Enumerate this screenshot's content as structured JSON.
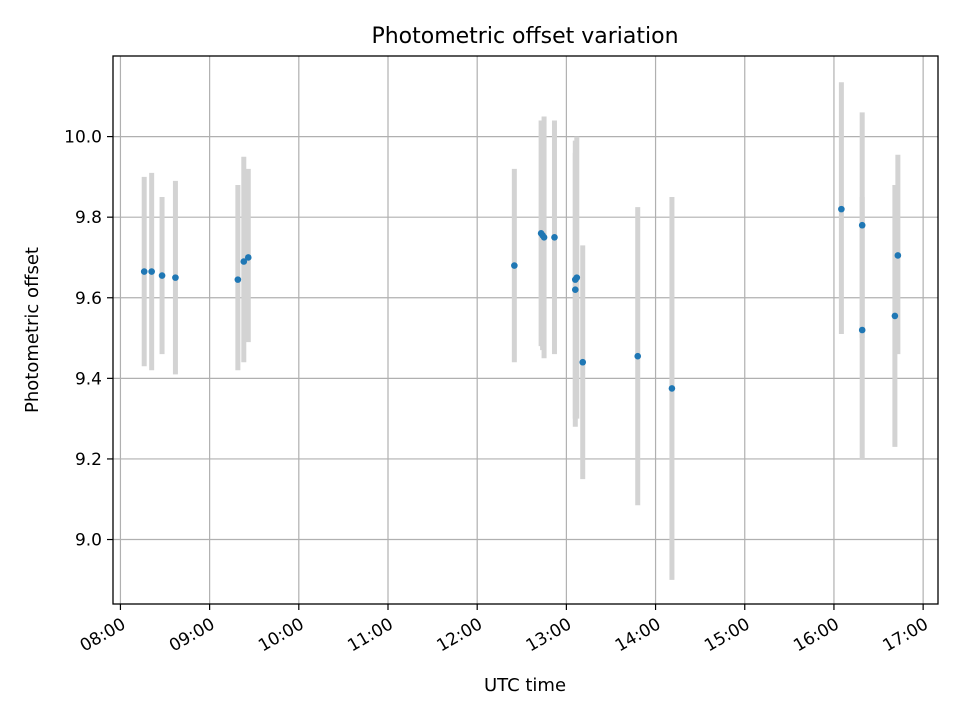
{
  "chart_data": {
    "type": "scatter",
    "title": "Photometric offset variation",
    "xlabel": "UTC time",
    "ylabel": "Photometric offset",
    "x_tick_labels": [
      "08:00",
      "09:00",
      "10:00",
      "11:00",
      "12:00",
      "13:00",
      "14:00",
      "15:00",
      "16:00",
      "17:00"
    ],
    "y_tick_labels": [
      "9.0",
      "9.2",
      "9.4",
      "9.6",
      "9.8",
      "10.0"
    ],
    "xlim": [
      "07:55",
      "17:10"
    ],
    "ylim": [
      8.84,
      10.2
    ],
    "grid": true,
    "legend": false,
    "colors": {
      "points": "#1f77b4",
      "errorbars": "#d3d3d3",
      "grid": "#b0b0b0"
    },
    "points": [
      {
        "x": "08:16",
        "y": 9.665,
        "ylow": 9.43,
        "yhigh": 9.9
      },
      {
        "x": "08:21",
        "y": 9.665,
        "ylow": 9.42,
        "yhigh": 9.91
      },
      {
        "x": "08:28",
        "y": 9.655,
        "ylow": 9.46,
        "yhigh": 9.85
      },
      {
        "x": "08:37",
        "y": 9.65,
        "ylow": 9.41,
        "yhigh": 9.89
      },
      {
        "x": "09:19",
        "y": 9.645,
        "ylow": 9.42,
        "yhigh": 9.88
      },
      {
        "x": "09:23",
        "y": 9.69,
        "ylow": 9.44,
        "yhigh": 9.95
      },
      {
        "x": "09:26",
        "y": 9.7,
        "ylow": 9.49,
        "yhigh": 9.92
      },
      {
        "x": "12:25",
        "y": 9.68,
        "ylow": 9.44,
        "yhigh": 9.92
      },
      {
        "x": "12:43",
        "y": 9.76,
        "ylow": 9.48,
        "yhigh": 10.04
      },
      {
        "x": "12:44",
        "y": 9.755,
        "ylow": 9.47,
        "yhigh": 10.03
      },
      {
        "x": "12:45",
        "y": 9.75,
        "ylow": 9.45,
        "yhigh": 10.05
      },
      {
        "x": "12:52",
        "y": 9.75,
        "ylow": 9.46,
        "yhigh": 10.04
      },
      {
        "x": "13:06",
        "y": 9.62,
        "ylow": 9.28,
        "yhigh": 9.96
      },
      {
        "x": "13:06",
        "y": 9.645,
        "ylow": 9.3,
        "yhigh": 9.99
      },
      {
        "x": "13:07",
        "y": 9.65,
        "ylow": 9.3,
        "yhigh": 10.0
      },
      {
        "x": "13:11",
        "y": 9.44,
        "ylow": 9.15,
        "yhigh": 9.73
      },
      {
        "x": "13:48",
        "y": 9.455,
        "ylow": 9.085,
        "yhigh": 9.825
      },
      {
        "x": "14:11",
        "y": 9.375,
        "ylow": 8.9,
        "yhigh": 9.85
      },
      {
        "x": "16:05",
        "y": 9.82,
        "ylow": 9.51,
        "yhigh": 10.135
      },
      {
        "x": "16:19",
        "y": 9.78,
        "ylow": 9.5,
        "yhigh": 10.06
      },
      {
        "x": "16:19",
        "y": 9.52,
        "ylow": 9.2,
        "yhigh": 9.85
      },
      {
        "x": "16:41",
        "y": 9.555,
        "ylow": 9.23,
        "yhigh": 9.88
      },
      {
        "x": "16:43",
        "y": 9.705,
        "ylow": 9.46,
        "yhigh": 9.955
      }
    ]
  }
}
